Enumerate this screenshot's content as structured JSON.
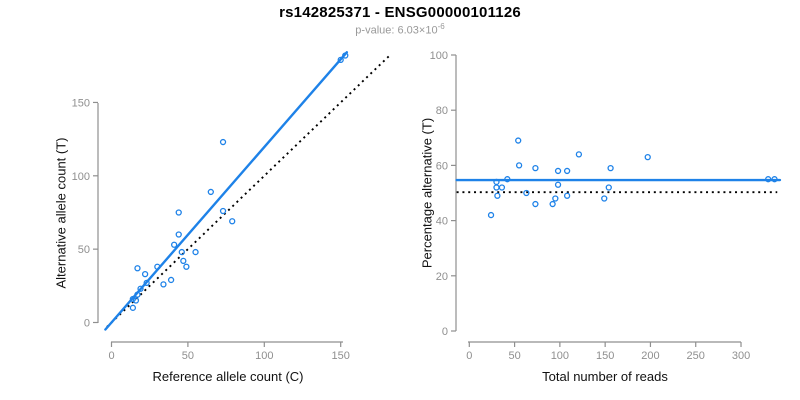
{
  "header": {
    "title": "rs142825371 - ENSG00000101126",
    "subtitle_prefix": "p-value: 6.03×10",
    "subtitle_exponent": "-6"
  },
  "colors": {
    "accent_blue": "#1e82e8",
    "reference_black": "#000000",
    "axis_gray": "#8f8f8f",
    "subtitle_gray": "#999999",
    "background": "#ffffff"
  },
  "chart_data": [
    {
      "type": "scatter",
      "title": "",
      "xlabel": "Reference allele count (C)",
      "ylabel": "Alternative allele count (T)",
      "xticks": [
        0,
        50,
        100,
        150
      ],
      "yticks": [
        0,
        50,
        100,
        150
      ],
      "xlim": [
        0,
        155
      ],
      "ylim": [
        0,
        185
      ],
      "grid": false,
      "legend": "none",
      "points": [
        [
          153,
          182
        ],
        [
          150,
          179
        ],
        [
          73,
          123
        ],
        [
          65,
          89
        ],
        [
          73,
          76
        ],
        [
          79,
          69
        ],
        [
          44,
          75
        ],
        [
          44,
          60
        ],
        [
          41,
          53
        ],
        [
          46,
          48
        ],
        [
          55,
          48
        ],
        [
          47,
          42
        ],
        [
          49,
          38
        ],
        [
          39,
          29
        ],
        [
          34,
          26
        ],
        [
          30,
          38
        ],
        [
          22,
          33
        ],
        [
          17,
          37
        ],
        [
          23,
          27
        ],
        [
          19,
          23
        ],
        [
          17,
          19
        ],
        [
          16,
          15
        ],
        [
          14,
          16
        ],
        [
          14,
          10
        ]
      ],
      "fit_line": {
        "slope": 1.196,
        "intercept": 0,
        "x_range": [
          -4,
          154
        ],
        "style": "solid"
      },
      "reference_line": {
        "slope": 1,
        "intercept": 0,
        "x_range": [
          -3,
          183
        ],
        "style": "dotted"
      }
    },
    {
      "type": "scatter",
      "title": "",
      "xlabel": "Total number of reads",
      "ylabel": "Percentage alternative (T)",
      "xticks": [
        0,
        50,
        100,
        150,
        200,
        250,
        300
      ],
      "yticks": [
        0,
        20,
        40,
        60,
        80,
        100
      ],
      "xlim": [
        0,
        340
      ],
      "ylim": [
        0,
        100
      ],
      "grid": false,
      "legend": "none",
      "points": [
        [
          24,
          42
        ],
        [
          30,
          54
        ],
        [
          30,
          52
        ],
        [
          36,
          52
        ],
        [
          31,
          49
        ],
        [
          42,
          55
        ],
        [
          54,
          69
        ],
        [
          55,
          60
        ],
        [
          63,
          50
        ],
        [
          73,
          59
        ],
        [
          73,
          46
        ],
        [
          92,
          46
        ],
        [
          95,
          48
        ],
        [
          98,
          58
        ],
        [
          98,
          53
        ],
        [
          108,
          58
        ],
        [
          108,
          49
        ],
        [
          121,
          64
        ],
        [
          149,
          48
        ],
        [
          154,
          52
        ],
        [
          156,
          59
        ],
        [
          197,
          63
        ],
        [
          330,
          55
        ],
        [
          337,
          55
        ]
      ],
      "fit_line": {
        "slope": 0,
        "intercept": 54.7,
        "x_range": [
          -14,
          343
        ],
        "style": "solid"
      },
      "reference_line": {
        "slope": 0,
        "intercept": 50.3,
        "x_range": [
          -14,
          340
        ],
        "style": "dotted"
      }
    }
  ]
}
